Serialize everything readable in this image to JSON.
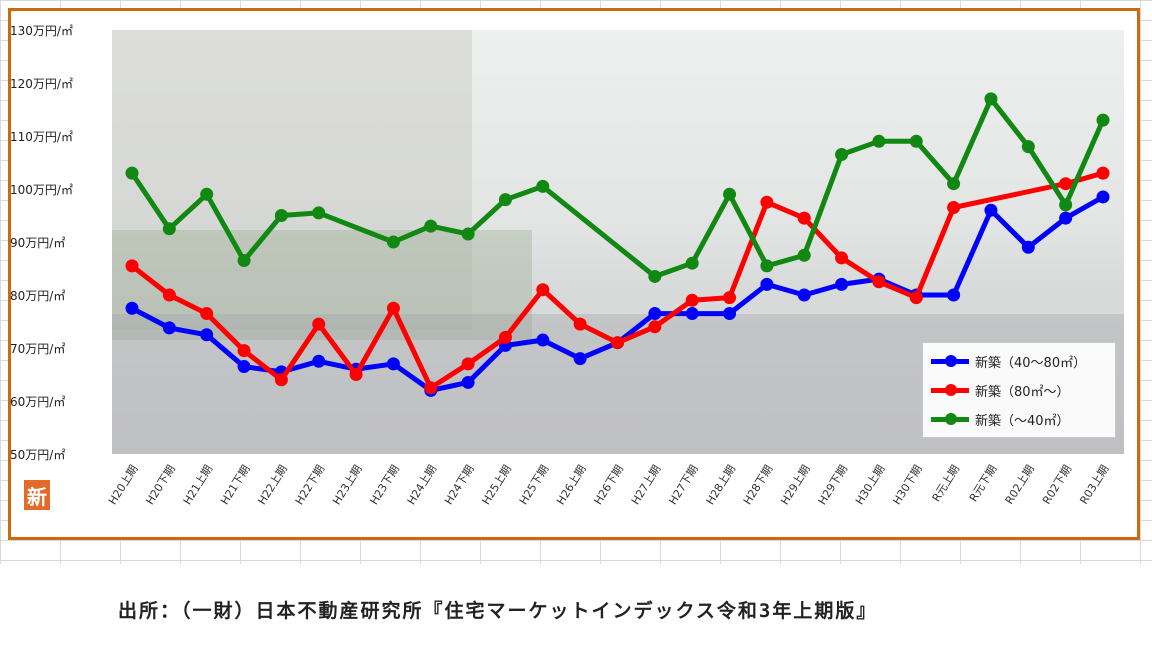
{
  "chart_data": {
    "type": "line",
    "categories": [
      "H20上期",
      "H20下期",
      "H21上期",
      "H21下期",
      "H22上期",
      "H22下期",
      "H23上期",
      "H23下期",
      "H24上期",
      "H24下期",
      "H25上期",
      "H25下期",
      "H26上期",
      "H26下期",
      "H27上期",
      "H27下期",
      "H28上期",
      "H28下期",
      "H29上期",
      "H29下期",
      "H30上期",
      "H30下期",
      "R元上期",
      "R元下期",
      "R02上期",
      "R02下期",
      "R03上期"
    ],
    "ylim": [
      50,
      130
    ],
    "yticks": [
      50,
      60,
      70,
      80,
      90,
      100,
      110,
      120,
      130
    ],
    "ytick_labels": [
      "50万円/㎡",
      "60万円/㎡",
      "70万円/㎡",
      "80万円/㎡",
      "90万円/㎡",
      "100万円/㎡",
      "110万円/㎡",
      "120万円/㎡",
      "130万円/㎡"
    ],
    "legend_position": "bottom-right",
    "grid": false,
    "series": [
      {
        "name": "新築（40～80㎡）",
        "color": "#0000ff",
        "values": [
          77.5,
          73.8,
          72.5,
          66.5,
          65.5,
          67.5,
          66,
          67,
          62,
          63.5,
          70.5,
          71.5,
          68,
          71,
          76.5,
          76.5,
          76.5,
          82,
          80,
          82,
          83,
          80,
          80,
          96,
          89,
          94.5,
          98.5
        ]
      },
      {
        "name": "新築（80㎡～）",
        "color": "#ff0000",
        "values": [
          85.5,
          80,
          76.5,
          69.5,
          64,
          74.5,
          65,
          77.5,
          62.5,
          67,
          72,
          81,
          74.5,
          71,
          74,
          79,
          79.5,
          97.5,
          94.5,
          87,
          82.5,
          79.5,
          96.5,
          null,
          null,
          101,
          103
        ]
      },
      {
        "name": "新築（～40㎡）",
        "color": "#118811",
        "values": [
          103,
          92.5,
          99,
          86.5,
          95,
          95.5,
          null,
          90,
          93,
          91.5,
          98,
          100.5,
          null,
          null,
          83.5,
          86,
          99,
          85.5,
          87.5,
          106.5,
          109,
          109,
          101,
          117,
          108,
          97,
          113
        ]
      }
    ]
  },
  "logo_text": "新",
  "source_text": "出所：（一財）日本不動産研究所『住宅マーケットインデックス令和3年上期版』"
}
